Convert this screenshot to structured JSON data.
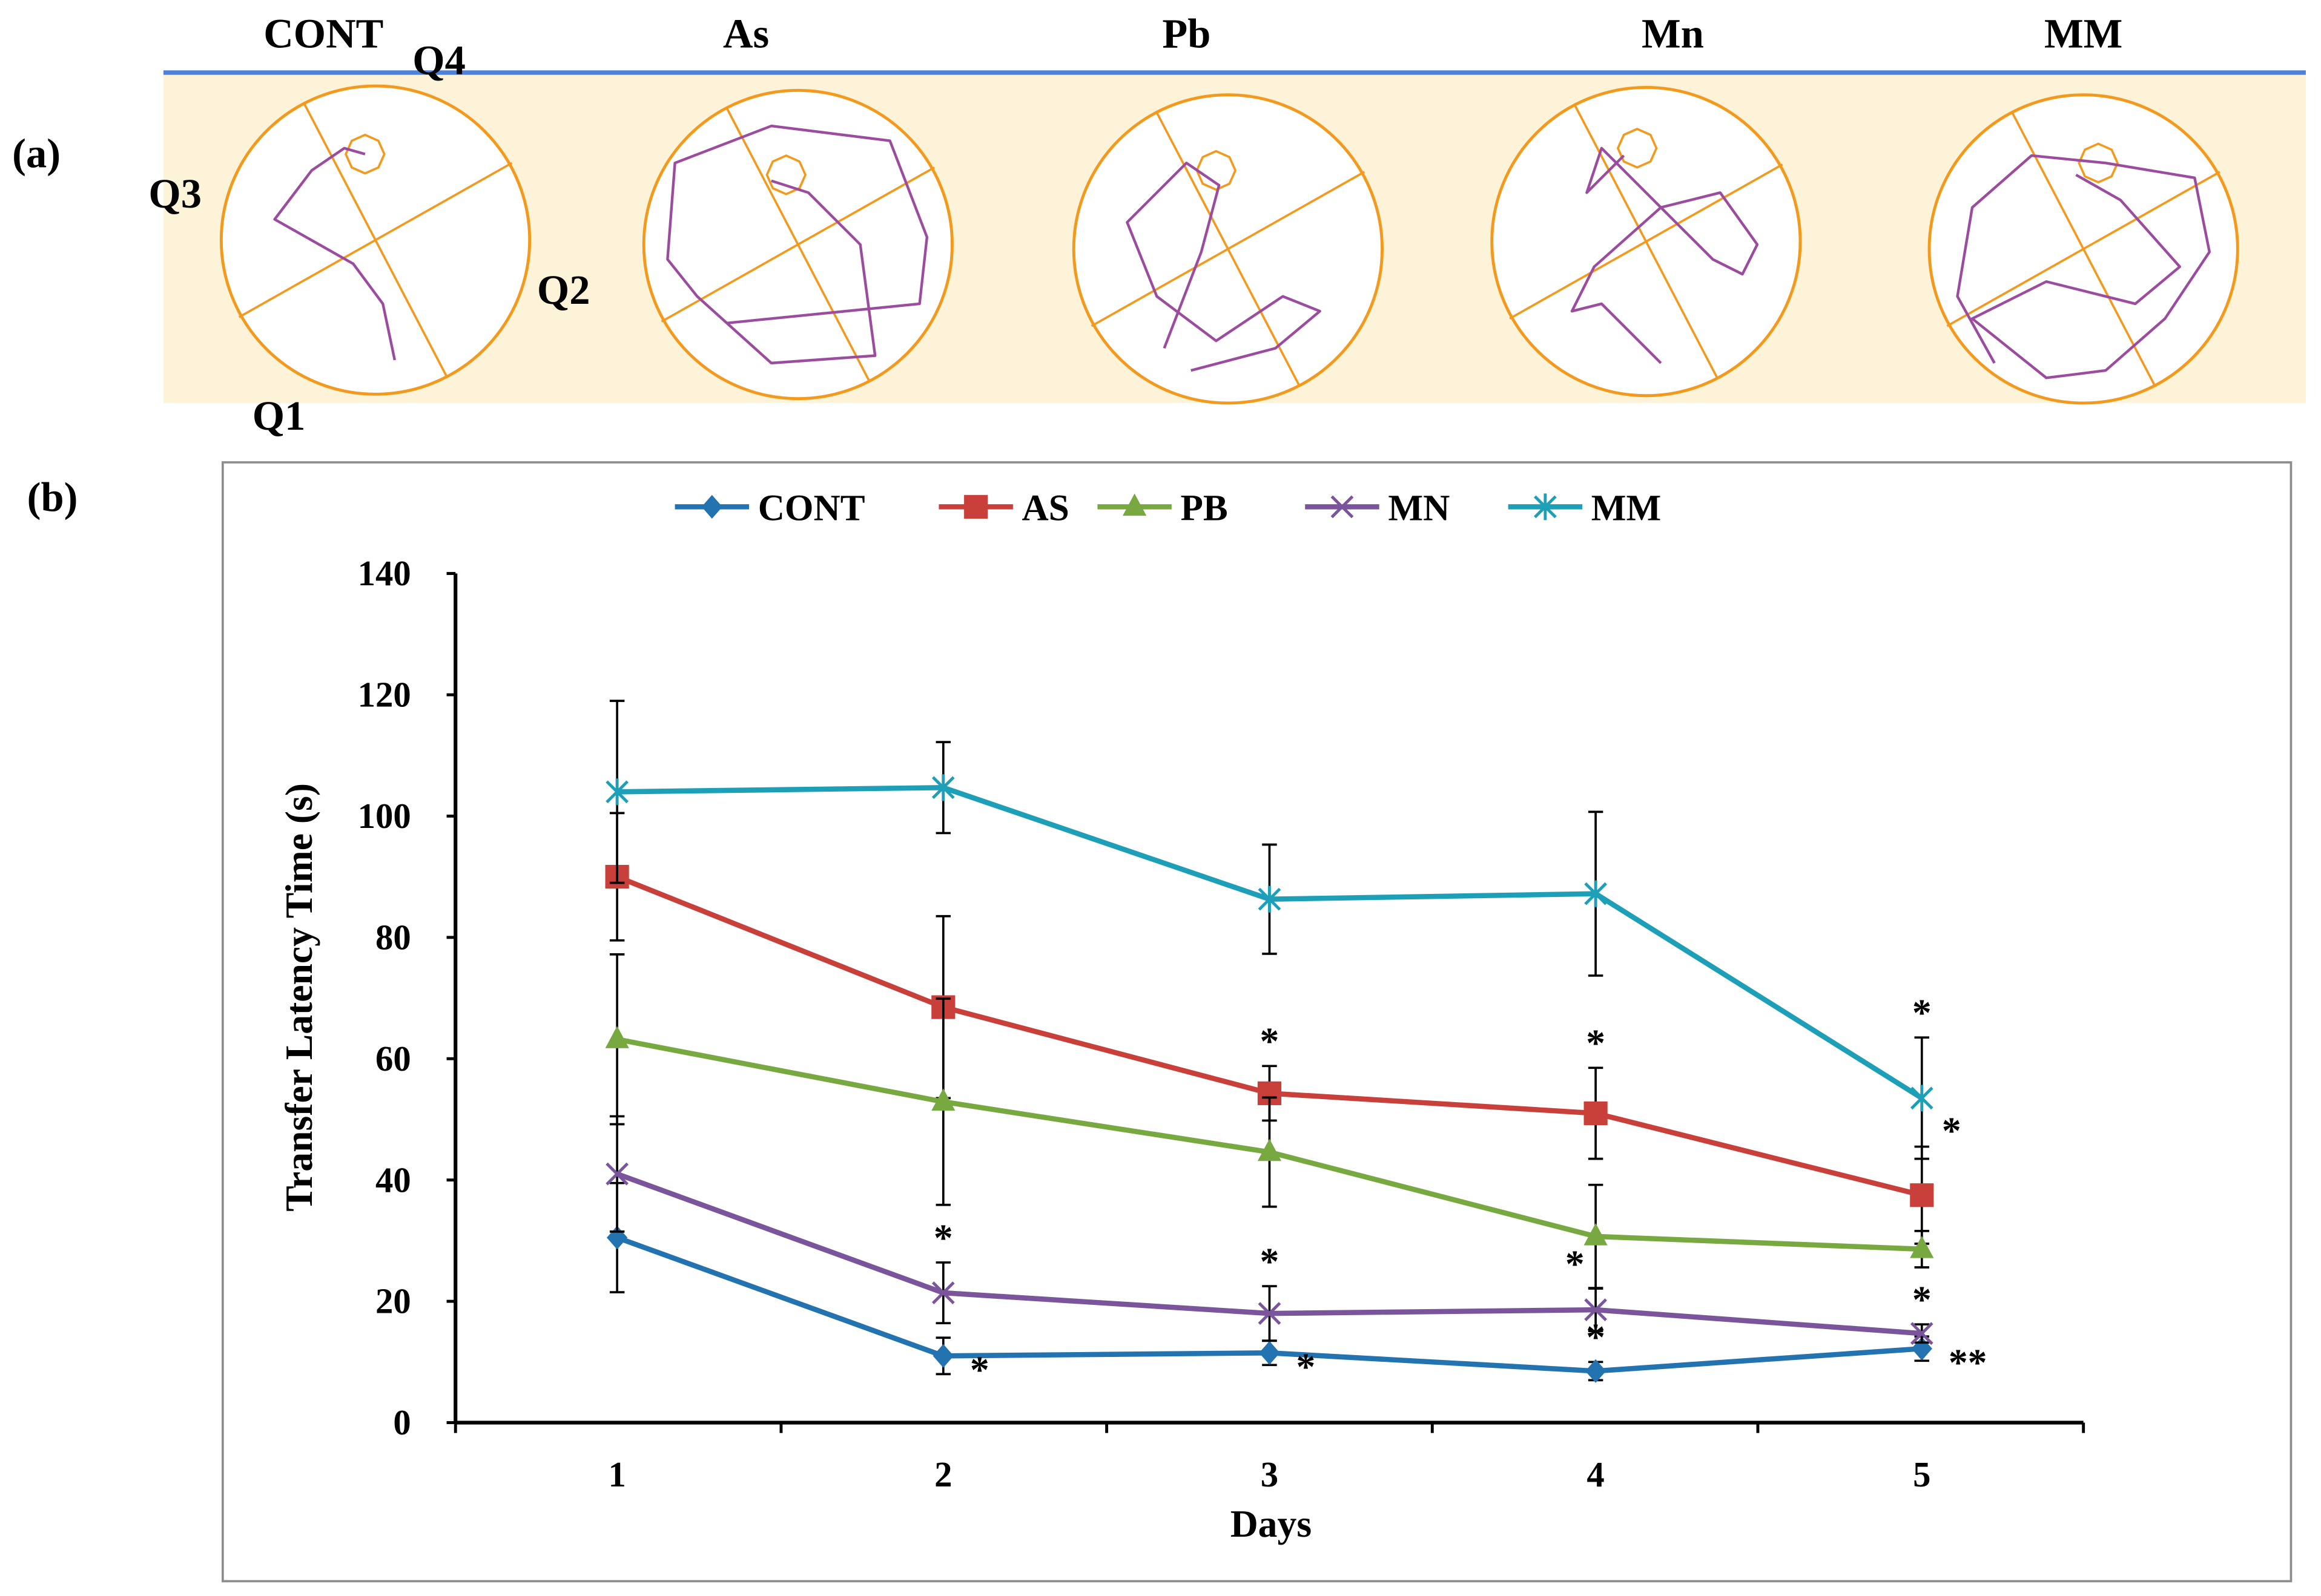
{
  "panel_a": {
    "label": "(a)",
    "groups": [
      "CONT",
      "As",
      "Pb",
      "Mn",
      "MM"
    ],
    "quadrants": {
      "q1": "Q1",
      "q2": "Q2",
      "q3": "Q3",
      "q4": "Q4"
    },
    "colors": {
      "band": "#fdf3d9",
      "rule": "#4f81d8",
      "pool": "#f39a1e",
      "path": "#9b4c9e"
    }
  },
  "panel_b": {
    "label": "(b)"
  },
  "chart_data": {
    "type": "line",
    "title": "",
    "xlabel": "Days",
    "ylabel": "Transfer Latency Time (s)",
    "x": [
      1,
      2,
      3,
      4,
      5
    ],
    "ylim": [
      0,
      140
    ],
    "yticks": [
      0,
      20,
      40,
      60,
      80,
      100,
      120,
      140
    ],
    "grid": false,
    "legend_position": "top-center",
    "series": [
      {
        "name": "CONT",
        "color": "#2373b0",
        "marker": "diamond",
        "values": [
          30.5,
          11,
          11.5,
          8.5,
          12.2
        ],
        "errors": [
          9,
          3,
          2,
          1.5,
          2
        ]
      },
      {
        "name": "AS",
        "color": "#c9403a",
        "marker": "square",
        "values": [
          90,
          68.5,
          54.3,
          51,
          37.5
        ],
        "errors": [
          10.5,
          15,
          4.5,
          7.5,
          8
        ]
      },
      {
        "name": "PB",
        "color": "#78a840",
        "marker": "triangle",
        "values": [
          63.2,
          52.9,
          44.6,
          30.7,
          28.6
        ],
        "errors": [
          14,
          17,
          9,
          8.5,
          3
        ]
      },
      {
        "name": "MN",
        "color": "#7b559c",
        "marker": "x",
        "values": [
          41,
          21.4,
          18,
          18.6,
          14.7
        ],
        "errors": [
          9.5,
          5,
          4.5,
          3.5,
          1.5
        ]
      },
      {
        "name": "MM",
        "color": "#1d9fb8",
        "marker": "star",
        "values": [
          104,
          104.7,
          86.3,
          87.2,
          53.5
        ],
        "errors": [
          15,
          7.5,
          9,
          13.5,
          10
        ]
      }
    ],
    "annotations": [
      {
        "series": "AS",
        "day": 3,
        "text": "*",
        "position": "above"
      },
      {
        "series": "AS",
        "day": 4,
        "text": "*",
        "position": "above"
      },
      {
        "series": "MM",
        "day": 5,
        "text": "*",
        "position": "above"
      },
      {
        "series": "AS",
        "day": 5,
        "text": "*",
        "position": "right-above"
      },
      {
        "series": "MN",
        "day": 2,
        "text": "*",
        "position": "above"
      },
      {
        "series": "MN",
        "day": 3,
        "text": "*",
        "position": "above"
      },
      {
        "series": "MN",
        "day": 4,
        "text": "*",
        "position": "left-above"
      },
      {
        "series": "MN",
        "day": 5,
        "text": "*",
        "position": "above"
      },
      {
        "series": "CONT",
        "day": 2,
        "text": "*",
        "position": "right"
      },
      {
        "series": "CONT",
        "day": 3,
        "text": "*",
        "position": "right"
      },
      {
        "series": "CONT",
        "day": 4,
        "text": "*",
        "position": "above"
      },
      {
        "series": "CONT",
        "day": 5,
        "text": "**",
        "position": "right"
      }
    ]
  }
}
